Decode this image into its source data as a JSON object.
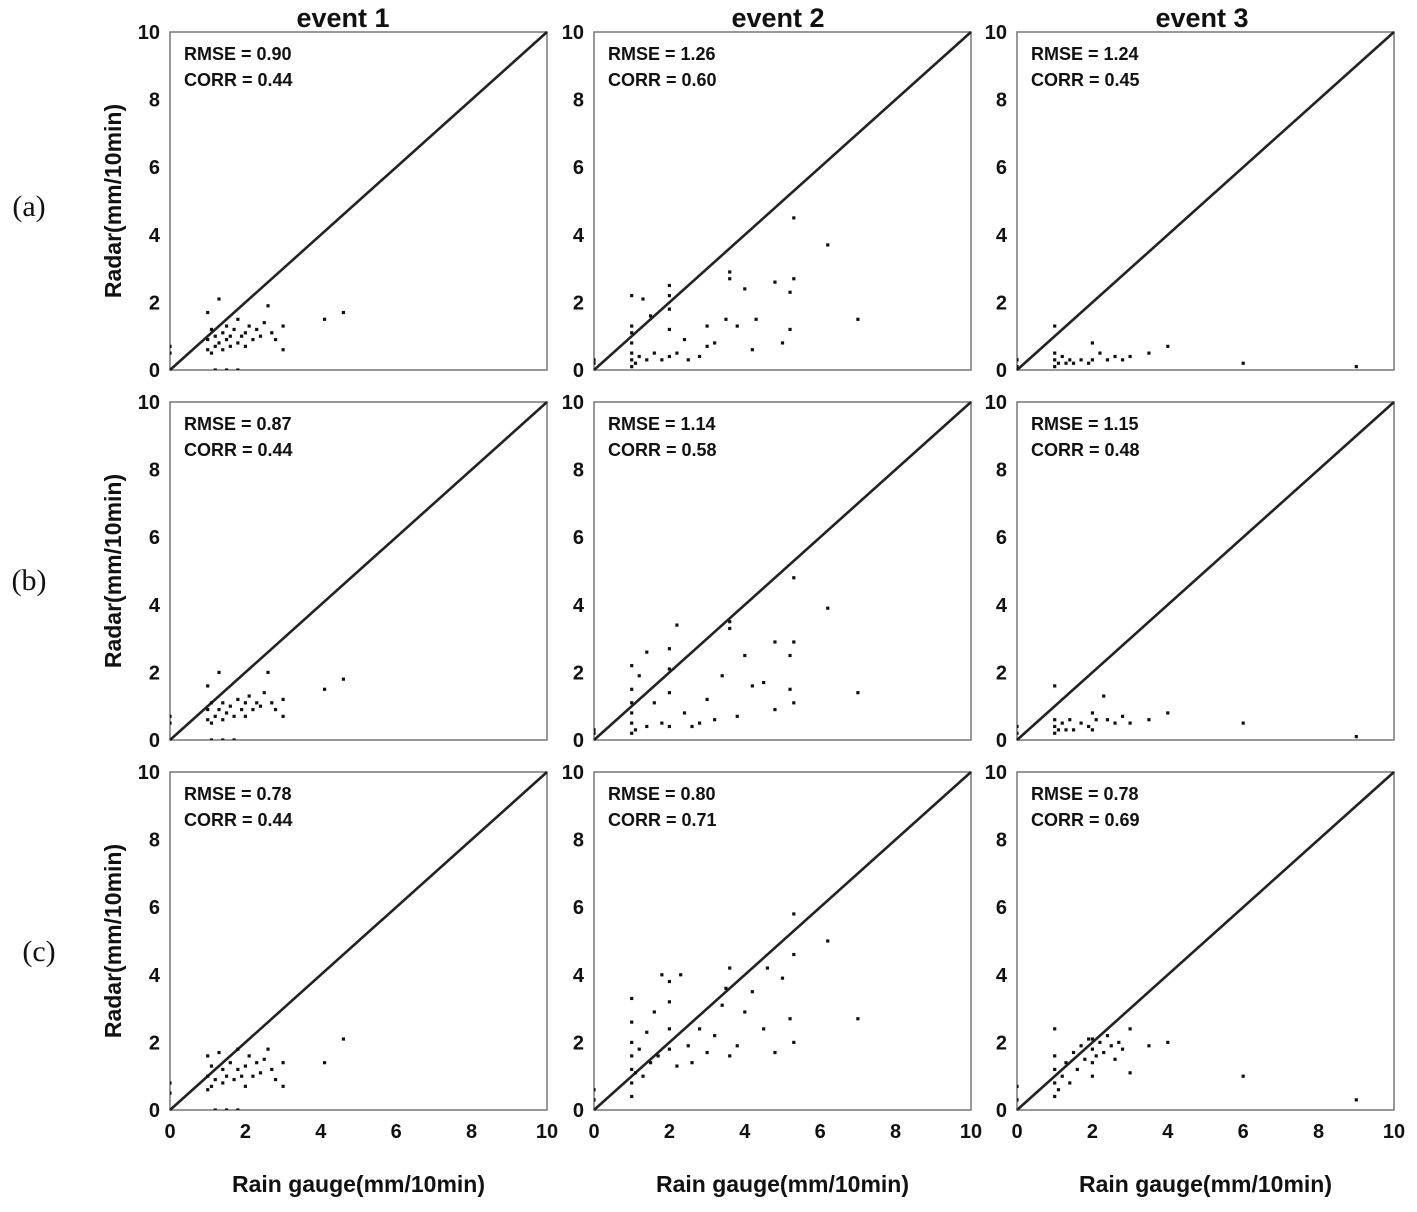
{
  "column_titles": [
    "event 1",
    "event 2",
    "event 3"
  ],
  "row_labels": [
    "(a)",
    "(b)",
    "(c)"
  ],
  "y_axis_label": "Radar(mm/10min)",
  "x_axis_label": "Rain gauge(mm/10min)",
  "tick_labels": [
    "0",
    "2",
    "4",
    "6",
    "8",
    "10"
  ],
  "chart_data": [
    {
      "type": "scatter",
      "row": "(a)",
      "column": "event 1",
      "stats": [
        "RMSE = 0.90",
        "CORR = 0.44"
      ],
      "xlim": [
        0,
        10
      ],
      "ylim": [
        0,
        10
      ],
      "reference_line": "1:1",
      "points": [
        [
          0.0,
          0.5
        ],
        [
          0.0,
          0.7
        ],
        [
          1.0,
          0.6
        ],
        [
          1.0,
          0.9
        ],
        [
          1.0,
          1.7
        ],
        [
          1.1,
          0.5
        ],
        [
          1.1,
          1.2
        ],
        [
          1.2,
          0.7
        ],
        [
          1.2,
          1.0
        ],
        [
          1.3,
          0.8
        ],
        [
          1.3,
          2.1
        ],
        [
          1.4,
          0.6
        ],
        [
          1.4,
          1.1
        ],
        [
          1.5,
          0.9
        ],
        [
          1.5,
          1.3
        ],
        [
          1.6,
          0.7
        ],
        [
          1.6,
          1.0
        ],
        [
          1.7,
          1.2
        ],
        [
          1.8,
          0.8
        ],
        [
          1.8,
          1.5
        ],
        [
          1.9,
          1.0
        ],
        [
          2.0,
          0.7
        ],
        [
          2.0,
          1.1
        ],
        [
          2.1,
          1.3
        ],
        [
          2.2,
          0.9
        ],
        [
          2.3,
          1.2
        ],
        [
          2.4,
          1.0
        ],
        [
          2.5,
          1.4
        ],
        [
          2.6,
          1.9
        ],
        [
          2.7,
          1.1
        ],
        [
          2.8,
          0.9
        ],
        [
          3.0,
          1.3
        ],
        [
          3.0,
          0.6
        ],
        [
          1.2,
          0.0
        ],
        [
          1.5,
          0.0
        ],
        [
          1.8,
          0.0
        ],
        [
          4.1,
          1.5
        ],
        [
          4.6,
          1.7
        ]
      ]
    },
    {
      "type": "scatter",
      "row": "(a)",
      "column": "event 2",
      "stats": [
        "RMSE = 1.26",
        "CORR = 0.60"
      ],
      "xlim": [
        0,
        10
      ],
      "ylim": [
        0,
        10
      ],
      "reference_line": "1:1",
      "points": [
        [
          0.0,
          0.2
        ],
        [
          0.0,
          0.3
        ],
        [
          1.0,
          0.1
        ],
        [
          1.0,
          0.3
        ],
        [
          1.0,
          0.5
        ],
        [
          1.0,
          0.8
        ],
        [
          1.0,
          1.1
        ],
        [
          1.0,
          1.3
        ],
        [
          1.0,
          2.2
        ],
        [
          1.1,
          0.2
        ],
        [
          1.2,
          0.4
        ],
        [
          1.3,
          2.1
        ],
        [
          1.4,
          0.3
        ],
        [
          1.5,
          1.6
        ],
        [
          1.6,
          0.5
        ],
        [
          1.8,
          0.3
        ],
        [
          2.0,
          0.4
        ],
        [
          2.0,
          1.2
        ],
        [
          2.0,
          1.8
        ],
        [
          2.0,
          2.2
        ],
        [
          2.0,
          2.5
        ],
        [
          2.2,
          0.5
        ],
        [
          2.4,
          0.9
        ],
        [
          2.5,
          0.3
        ],
        [
          2.8,
          0.4
        ],
        [
          3.0,
          0.7
        ],
        [
          3.0,
          1.3
        ],
        [
          3.2,
          0.8
        ],
        [
          3.5,
          1.5
        ],
        [
          3.6,
          2.9
        ],
        [
          3.6,
          2.7
        ],
        [
          3.8,
          1.3
        ],
        [
          4.0,
          2.4
        ],
        [
          4.2,
          0.6
        ],
        [
          4.3,
          1.5
        ],
        [
          4.8,
          2.6
        ],
        [
          5.0,
          0.8
        ],
        [
          5.2,
          1.2
        ],
        [
          5.2,
          2.3
        ],
        [
          5.3,
          4.5
        ],
        [
          5.3,
          2.7
        ],
        [
          6.2,
          3.7
        ],
        [
          7.0,
          1.5
        ]
      ]
    },
    {
      "type": "scatter",
      "row": "(a)",
      "column": "event 3",
      "stats": [
        "RMSE = 1.24",
        "CORR = 0.45"
      ],
      "xlim": [
        0,
        10
      ],
      "ylim": [
        0,
        10
      ],
      "reference_line": "1:1",
      "points": [
        [
          0.0,
          0.1
        ],
        [
          0.0,
          0.3
        ],
        [
          1.0,
          0.1
        ],
        [
          1.0,
          0.3
        ],
        [
          1.0,
          0.5
        ],
        [
          1.0,
          1.3
        ],
        [
          1.1,
          0.2
        ],
        [
          1.2,
          0.4
        ],
        [
          1.3,
          0.2
        ],
        [
          1.4,
          0.3
        ],
        [
          1.5,
          0.2
        ],
        [
          1.7,
          0.3
        ],
        [
          1.9,
          0.2
        ],
        [
          2.0,
          0.3
        ],
        [
          2.0,
          0.8
        ],
        [
          2.2,
          0.5
        ],
        [
          2.4,
          0.3
        ],
        [
          2.6,
          0.4
        ],
        [
          2.8,
          0.3
        ],
        [
          3.0,
          0.4
        ],
        [
          3.5,
          0.5
        ],
        [
          4.0,
          0.7
        ],
        [
          6.0,
          0.2
        ],
        [
          9.0,
          0.1
        ]
      ]
    },
    {
      "type": "scatter",
      "row": "(b)",
      "column": "event 1",
      "stats": [
        "RMSE = 0.87",
        "CORR = 0.44"
      ],
      "xlim": [
        0,
        10
      ],
      "ylim": [
        0,
        10
      ],
      "reference_line": "1:1",
      "points": [
        [
          0.0,
          0.5
        ],
        [
          0.0,
          0.7
        ],
        [
          1.0,
          0.6
        ],
        [
          1.0,
          0.9
        ],
        [
          1.0,
          1.6
        ],
        [
          1.1,
          0.5
        ],
        [
          1.1,
          1.1
        ],
        [
          1.2,
          0.7
        ],
        [
          1.3,
          0.9
        ],
        [
          1.3,
          2.0
        ],
        [
          1.4,
          0.6
        ],
        [
          1.4,
          1.1
        ],
        [
          1.5,
          0.8
        ],
        [
          1.6,
          1.0
        ],
        [
          1.7,
          0.7
        ],
        [
          1.8,
          1.2
        ],
        [
          1.9,
          0.9
        ],
        [
          2.0,
          0.7
        ],
        [
          2.0,
          1.1
        ],
        [
          2.1,
          1.3
        ],
        [
          2.2,
          0.9
        ],
        [
          2.3,
          1.1
        ],
        [
          2.4,
          1.0
        ],
        [
          2.5,
          1.4
        ],
        [
          2.6,
          2.0
        ],
        [
          2.7,
          1.1
        ],
        [
          2.8,
          0.9
        ],
        [
          3.0,
          1.2
        ],
        [
          3.0,
          0.7
        ],
        [
          1.1,
          0.0
        ],
        [
          1.4,
          0.0
        ],
        [
          1.7,
          0.0
        ],
        [
          4.1,
          1.5
        ],
        [
          4.6,
          1.8
        ]
      ]
    },
    {
      "type": "scatter",
      "row": "(b)",
      "column": "event 2",
      "stats": [
        "RMSE = 1.14",
        "CORR = 0.58"
      ],
      "xlim": [
        0,
        10
      ],
      "ylim": [
        0,
        10
      ],
      "reference_line": "1:1",
      "points": [
        [
          0.0,
          0.2
        ],
        [
          0.0,
          0.3
        ],
        [
          1.0,
          0.2
        ],
        [
          1.0,
          0.5
        ],
        [
          1.0,
          0.8
        ],
        [
          1.0,
          1.1
        ],
        [
          1.0,
          1.5
        ],
        [
          1.0,
          2.2
        ],
        [
          1.1,
          0.3
        ],
        [
          1.2,
          1.9
        ],
        [
          1.4,
          0.4
        ],
        [
          1.4,
          2.6
        ],
        [
          1.6,
          1.1
        ],
        [
          1.8,
          0.5
        ],
        [
          2.0,
          0.4
        ],
        [
          2.0,
          2.1
        ],
        [
          2.0,
          2.7
        ],
        [
          2.0,
          1.4
        ],
        [
          2.2,
          3.4
        ],
        [
          2.4,
          0.8
        ],
        [
          2.6,
          0.4
        ],
        [
          2.8,
          0.5
        ],
        [
          3.0,
          1.2
        ],
        [
          3.2,
          0.6
        ],
        [
          3.4,
          1.9
        ],
        [
          3.6,
          3.5
        ],
        [
          3.6,
          3.3
        ],
        [
          3.8,
          0.7
        ],
        [
          4.0,
          2.5
        ],
        [
          4.2,
          1.6
        ],
        [
          4.5,
          1.7
        ],
        [
          4.8,
          2.9
        ],
        [
          4.8,
          0.9
        ],
        [
          5.2,
          2.5
        ],
        [
          5.2,
          1.5
        ],
        [
          5.3,
          4.8
        ],
        [
          5.3,
          2.9
        ],
        [
          5.3,
          1.1
        ],
        [
          6.2,
          3.9
        ],
        [
          7.0,
          1.4
        ]
      ]
    },
    {
      "type": "scatter",
      "row": "(b)",
      "column": "event 3",
      "stats": [
        "RMSE = 1.15",
        "CORR = 0.48"
      ],
      "xlim": [
        0,
        10
      ],
      "ylim": [
        0,
        10
      ],
      "reference_line": "1:1",
      "points": [
        [
          0.0,
          0.2
        ],
        [
          0.0,
          0.4
        ],
        [
          1.0,
          0.2
        ],
        [
          1.0,
          0.4
        ],
        [
          1.0,
          0.6
        ],
        [
          1.0,
          1.6
        ],
        [
          1.1,
          0.3
        ],
        [
          1.2,
          0.5
        ],
        [
          1.3,
          0.3
        ],
        [
          1.4,
          0.6
        ],
        [
          1.5,
          0.3
        ],
        [
          1.7,
          0.5
        ],
        [
          1.9,
          0.4
        ],
        [
          2.0,
          0.3
        ],
        [
          2.0,
          0.8
        ],
        [
          2.1,
          0.6
        ],
        [
          2.3,
          1.3
        ],
        [
          2.4,
          0.6
        ],
        [
          2.6,
          0.5
        ],
        [
          2.8,
          0.7
        ],
        [
          3.0,
          0.5
        ],
        [
          3.5,
          0.6
        ],
        [
          4.0,
          0.8
        ],
        [
          6.0,
          0.5
        ],
        [
          9.0,
          0.1
        ]
      ]
    },
    {
      "type": "scatter",
      "row": "(c)",
      "column": "event 1",
      "stats": [
        "RMSE = 0.78",
        "CORR = 0.44"
      ],
      "xlim": [
        0,
        10
      ],
      "ylim": [
        0,
        10
      ],
      "reference_line": "1:1",
      "points": [
        [
          0.0,
          0.5
        ],
        [
          0.0,
          0.8
        ],
        [
          1.0,
          0.6
        ],
        [
          1.0,
          1.0
        ],
        [
          1.0,
          1.6
        ],
        [
          1.1,
          0.7
        ],
        [
          1.1,
          1.3
        ],
        [
          1.2,
          0.9
        ],
        [
          1.3,
          1.7
        ],
        [
          1.4,
          0.8
        ],
        [
          1.4,
          1.2
        ],
        [
          1.5,
          1.0
        ],
        [
          1.6,
          1.4
        ],
        [
          1.7,
          0.9
        ],
        [
          1.8,
          1.2
        ],
        [
          1.8,
          1.8
        ],
        [
          1.9,
          1.0
        ],
        [
          2.0,
          0.7
        ],
        [
          2.0,
          1.3
        ],
        [
          2.1,
          1.6
        ],
        [
          2.2,
          1.0
        ],
        [
          2.3,
          1.4
        ],
        [
          2.4,
          1.1
        ],
        [
          2.5,
          1.5
        ],
        [
          2.6,
          1.8
        ],
        [
          2.7,
          1.2
        ],
        [
          2.8,
          0.9
        ],
        [
          3.0,
          1.4
        ],
        [
          3.0,
          0.7
        ],
        [
          1.2,
          0.0
        ],
        [
          1.5,
          0.0
        ],
        [
          1.8,
          0.0
        ],
        [
          4.1,
          1.4
        ],
        [
          4.6,
          2.1
        ]
      ]
    },
    {
      "type": "scatter",
      "row": "(c)",
      "column": "event 2",
      "stats": [
        "RMSE = 0.80",
        "CORR = 0.71"
      ],
      "xlim": [
        0,
        10
      ],
      "ylim": [
        0,
        10
      ],
      "reference_line": "1:1",
      "points": [
        [
          0.0,
          0.3
        ],
        [
          0.0,
          0.6
        ],
        [
          1.0,
          0.4
        ],
        [
          1.0,
          0.8
        ],
        [
          1.0,
          1.2
        ],
        [
          1.0,
          1.6
        ],
        [
          1.0,
          2.0
        ],
        [
          1.0,
          2.6
        ],
        [
          1.0,
          3.3
        ],
        [
          1.1,
          1.1
        ],
        [
          1.2,
          1.8
        ],
        [
          1.3,
          1.0
        ],
        [
          1.4,
          2.3
        ],
        [
          1.5,
          1.4
        ],
        [
          1.6,
          2.9
        ],
        [
          1.7,
          1.6
        ],
        [
          1.8,
          4.0
        ],
        [
          2.0,
          1.8
        ],
        [
          2.0,
          2.4
        ],
        [
          2.0,
          3.2
        ],
        [
          2.0,
          3.8
        ],
        [
          2.2,
          1.3
        ],
        [
          2.3,
          4.0
        ],
        [
          2.5,
          1.9
        ],
        [
          2.6,
          1.4
        ],
        [
          2.8,
          2.4
        ],
        [
          3.0,
          1.7
        ],
        [
          3.2,
          2.2
        ],
        [
          3.4,
          3.1
        ],
        [
          3.5,
          3.6
        ],
        [
          3.6,
          4.2
        ],
        [
          3.6,
          1.6
        ],
        [
          3.8,
          1.9
        ],
        [
          4.0,
          2.9
        ],
        [
          4.2,
          3.5
        ],
        [
          4.5,
          2.4
        ],
        [
          4.6,
          4.2
        ],
        [
          4.8,
          1.7
        ],
        [
          5.0,
          3.9
        ],
        [
          5.2,
          2.7
        ],
        [
          5.3,
          5.8
        ],
        [
          5.3,
          4.6
        ],
        [
          5.3,
          2.0
        ],
        [
          6.2,
          5.0
        ],
        [
          7.0,
          2.7
        ]
      ]
    },
    {
      "type": "scatter",
      "row": "(c)",
      "column": "event 3",
      "stats": [
        "RMSE = 0.78",
        "CORR = 0.69"
      ],
      "xlim": [
        0,
        10
      ],
      "ylim": [
        0,
        10
      ],
      "reference_line": "1:1",
      "points": [
        [
          0.0,
          0.3
        ],
        [
          0.0,
          0.7
        ],
        [
          1.0,
          0.4
        ],
        [
          1.0,
          0.8
        ],
        [
          1.0,
          1.2
        ],
        [
          1.0,
          1.6
        ],
        [
          1.0,
          2.4
        ],
        [
          1.1,
          0.6
        ],
        [
          1.2,
          1.0
        ],
        [
          1.3,
          1.4
        ],
        [
          1.4,
          0.8
        ],
        [
          1.5,
          1.7
        ],
        [
          1.6,
          1.2
        ],
        [
          1.7,
          1.9
        ],
        [
          1.8,
          1.5
        ],
        [
          1.9,
          2.1
        ],
        [
          2.0,
          1.0
        ],
        [
          2.0,
          1.4
        ],
        [
          2.0,
          1.8
        ],
        [
          2.0,
          2.1
        ],
        [
          2.1,
          1.6
        ],
        [
          2.2,
          2.0
        ],
        [
          2.3,
          1.7
        ],
        [
          2.4,
          2.2
        ],
        [
          2.5,
          1.9
        ],
        [
          2.6,
          1.5
        ],
        [
          2.7,
          2.0
        ],
        [
          2.8,
          1.8
        ],
        [
          3.0,
          2.4
        ],
        [
          3.0,
          1.1
        ],
        [
          3.5,
          1.9
        ],
        [
          4.0,
          2.0
        ],
        [
          6.0,
          1.0
        ],
        [
          9.0,
          0.3
        ]
      ]
    }
  ]
}
